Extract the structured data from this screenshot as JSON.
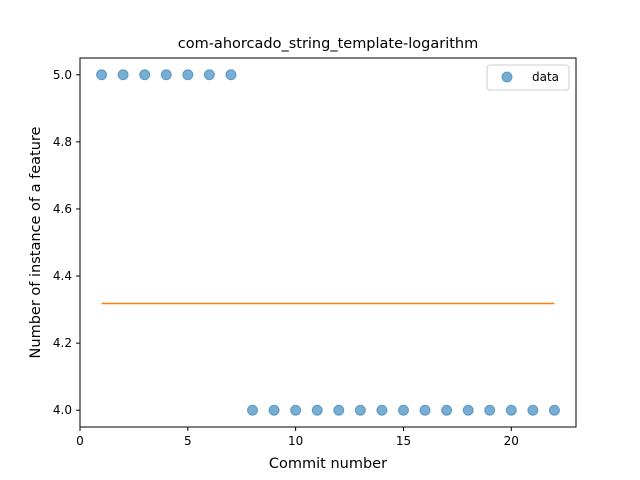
{
  "chart_data": {
    "type": "scatter",
    "title": "com-ahorcado_string_template-logarithm",
    "xlabel": "Commit number",
    "ylabel": "Number of instance of a feature",
    "xlim": [
      0,
      23
    ],
    "ylim": [
      3.95,
      5.05
    ],
    "xticks": [
      0,
      5,
      10,
      15,
      20
    ],
    "xtick_labels": [
      "0",
      "5",
      "10",
      "15",
      "20"
    ],
    "yticks": [
      4.0,
      4.2,
      4.4,
      4.6,
      4.8,
      5.0
    ],
    "ytick_labels": [
      "4.0",
      "4.2",
      "4.4",
      "4.6",
      "4.8",
      "5.0"
    ],
    "grid": false,
    "legend_position": "top-right",
    "series": [
      {
        "name": "data",
        "kind": "scatter",
        "color": "#1f77b4",
        "x": [
          1,
          2,
          3,
          4,
          5,
          6,
          7,
          8,
          9,
          10,
          11,
          12,
          13,
          14,
          15,
          16,
          17,
          18,
          19,
          20,
          21,
          22
        ],
        "y": [
          5,
          5,
          5,
          5,
          5,
          5,
          5,
          4,
          4,
          4,
          4,
          4,
          4,
          4,
          4,
          4,
          4,
          4,
          4,
          4,
          4,
          4
        ]
      },
      {
        "kind": "line",
        "color": "#ff7f0e",
        "x": [
          1,
          22
        ],
        "y": [
          4.318,
          4.318
        ]
      }
    ]
  }
}
